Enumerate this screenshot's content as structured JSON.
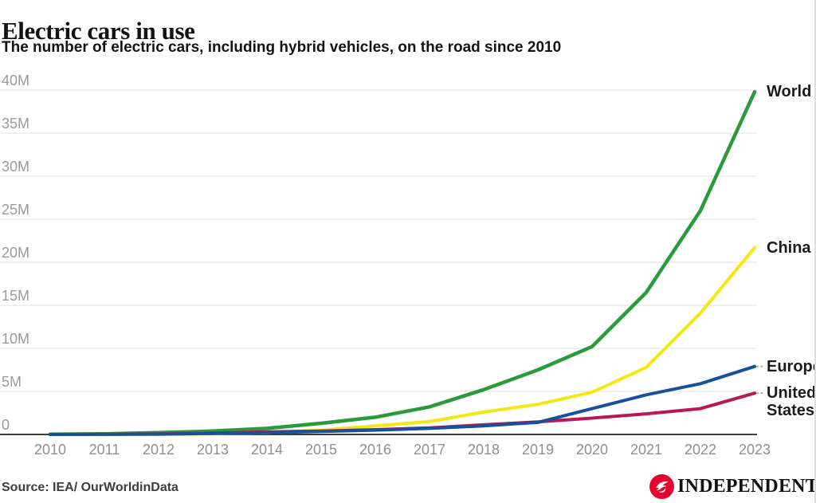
{
  "chart_data": {
    "type": "line",
    "title": "Electric cars in use",
    "subtitle": "The number of electric cars, including hybrid vehicles, on the road since 2010",
    "source": "Source: IEA/ OurWorldinData",
    "x": [
      2010,
      2011,
      2012,
      2013,
      2014,
      2015,
      2016,
      2017,
      2018,
      2019,
      2020,
      2021,
      2022,
      2023
    ],
    "x_tick_labels": [
      "2010",
      "2011",
      "2012",
      "2013",
      "2014",
      "2015",
      "2016",
      "2017",
      "2018",
      "2019",
      "2020",
      "2021",
      "2022",
      "2023"
    ],
    "y_unit": "million vehicles",
    "ylim": [
      0,
      40
    ],
    "y_ticks": [
      {
        "value": 0,
        "label": "0"
      },
      {
        "value": 5,
        "label": "5M"
      },
      {
        "value": 10,
        "label": "10M"
      },
      {
        "value": 15,
        "label": "15M"
      },
      {
        "value": 20,
        "label": "20M"
      },
      {
        "value": 25,
        "label": "25M"
      },
      {
        "value": 30,
        "label": "30M"
      },
      {
        "value": 35,
        "label": "35M"
      },
      {
        "value": 40,
        "label": "40M"
      }
    ],
    "grid": "horizontal",
    "legend_position": "end-of-line-labels-right",
    "series": [
      {
        "name": "World",
        "color": "#2a9a3a",
        "connector": false,
        "values": [
          0.02,
          0.07,
          0.2,
          0.4,
          0.7,
          1.3,
          2.0,
          3.2,
          5.2,
          7.5,
          10.2,
          16.5,
          26.0,
          39.8
        ]
      },
      {
        "name": "China",
        "color": "#f4e812",
        "connector": false,
        "values": [
          0.0,
          0.01,
          0.03,
          0.08,
          0.2,
          0.5,
          1.0,
          1.5,
          2.6,
          3.5,
          4.9,
          7.8,
          14.1,
          21.7
        ]
      },
      {
        "name": "Europe",
        "color": "#17519c",
        "connector": true,
        "values": [
          0.0,
          0.01,
          0.04,
          0.1,
          0.2,
          0.35,
          0.5,
          0.7,
          1.0,
          1.4,
          3.0,
          4.6,
          5.9,
          7.9
        ]
      },
      {
        "name": "United States",
        "color": "#b91755",
        "connector": true,
        "values": [
          0.0,
          0.02,
          0.07,
          0.17,
          0.3,
          0.4,
          0.56,
          0.76,
          1.12,
          1.45,
          1.9,
          2.4,
          3.0,
          4.8
        ]
      }
    ],
    "axis_colors": {
      "gridline": "#e8e8e8",
      "zero_line": "#3d3d3d",
      "tick_text": "#949494"
    }
  },
  "footer": {
    "brand": "INDEPENDENT",
    "brand_red": "#e6032e"
  }
}
